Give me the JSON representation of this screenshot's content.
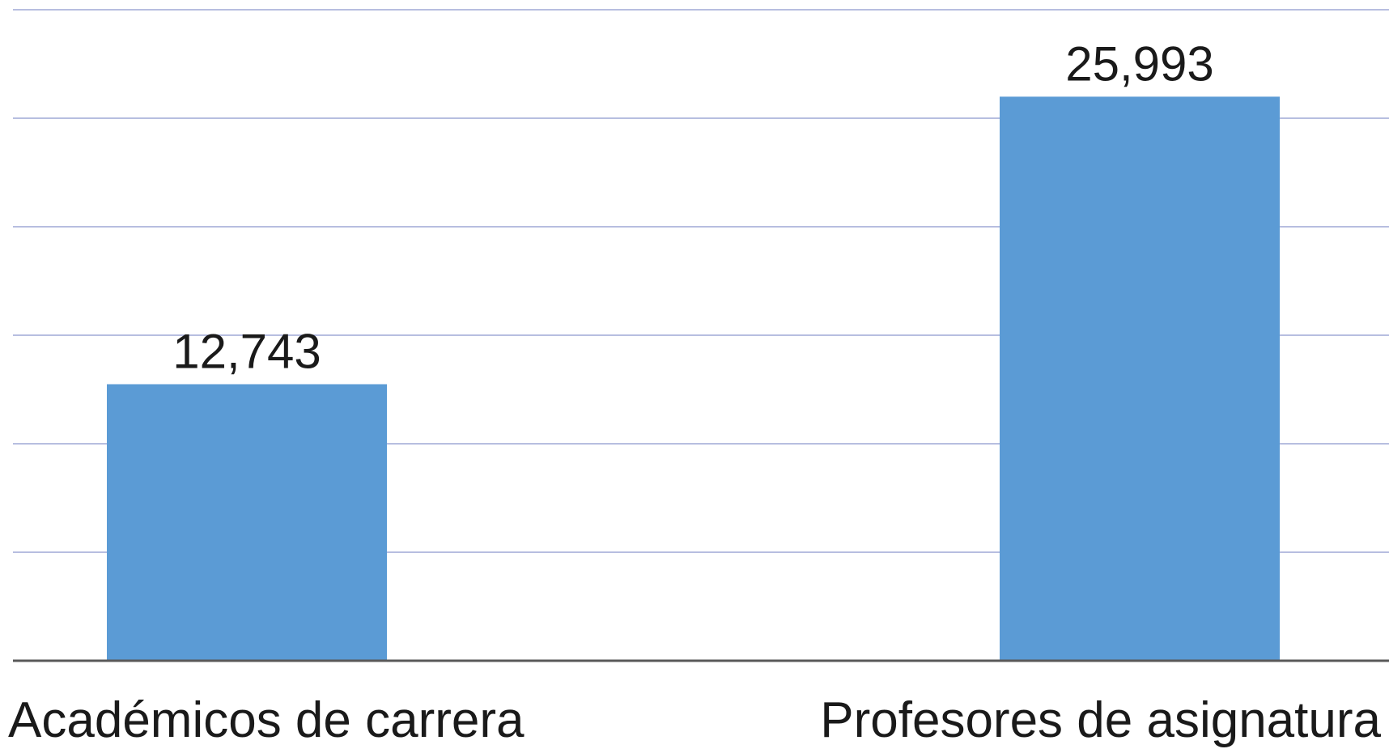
{
  "chart_data": {
    "type": "bar",
    "categories": [
      "Académicos de carrera",
      "Profesores de asignatura"
    ],
    "values": [
      12743,
      25993
    ],
    "value_labels": [
      "12,743",
      "25,993"
    ],
    "title": "",
    "xlabel": "",
    "ylabel": "",
    "ylim": [
      0,
      30000
    ],
    "grid": true,
    "y_tick_labels_shown": false,
    "legend": "none",
    "colors": {
      "bar": "#5b9bd5",
      "gridline": "#9fa8d6",
      "axis": "#595959",
      "text": "#1a1a1a"
    }
  }
}
